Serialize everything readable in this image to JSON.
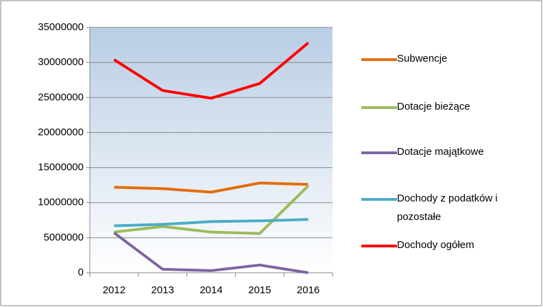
{
  "chart_data": {
    "type": "line",
    "categories": [
      "2012",
      "2013",
      "2014",
      "2015",
      "2016"
    ],
    "series": [
      {
        "name": "Subwencje",
        "color": "#e46c0a",
        "values": [
          12200000,
          12000000,
          11500000,
          12800000,
          12600000
        ]
      },
      {
        "name": "Dotacje bieżące",
        "color": "#9bbb59",
        "values": [
          5800000,
          6600000,
          5800000,
          5600000,
          12400000
        ]
      },
      {
        "name": "Dotacje majątkowe",
        "color": "#8064a2",
        "values": [
          5700000,
          500000,
          300000,
          1100000,
          0
        ]
      },
      {
        "name": "Dochody z podatków i pozostałe",
        "color": "#4bacc6",
        "values": [
          6700000,
          6900000,
          7300000,
          7400000,
          7600000
        ]
      },
      {
        "name": "Dochody ogółem",
        "color": "#ff0000",
        "values": [
          30400000,
          26000000,
          24900000,
          27000000,
          32800000
        ]
      }
    ],
    "ylim": [
      0,
      35000000
    ],
    "yticks": [
      0,
      5000000,
      10000000,
      15000000,
      20000000,
      25000000,
      30000000,
      35000000
    ],
    "grid": true,
    "legend": "right"
  }
}
